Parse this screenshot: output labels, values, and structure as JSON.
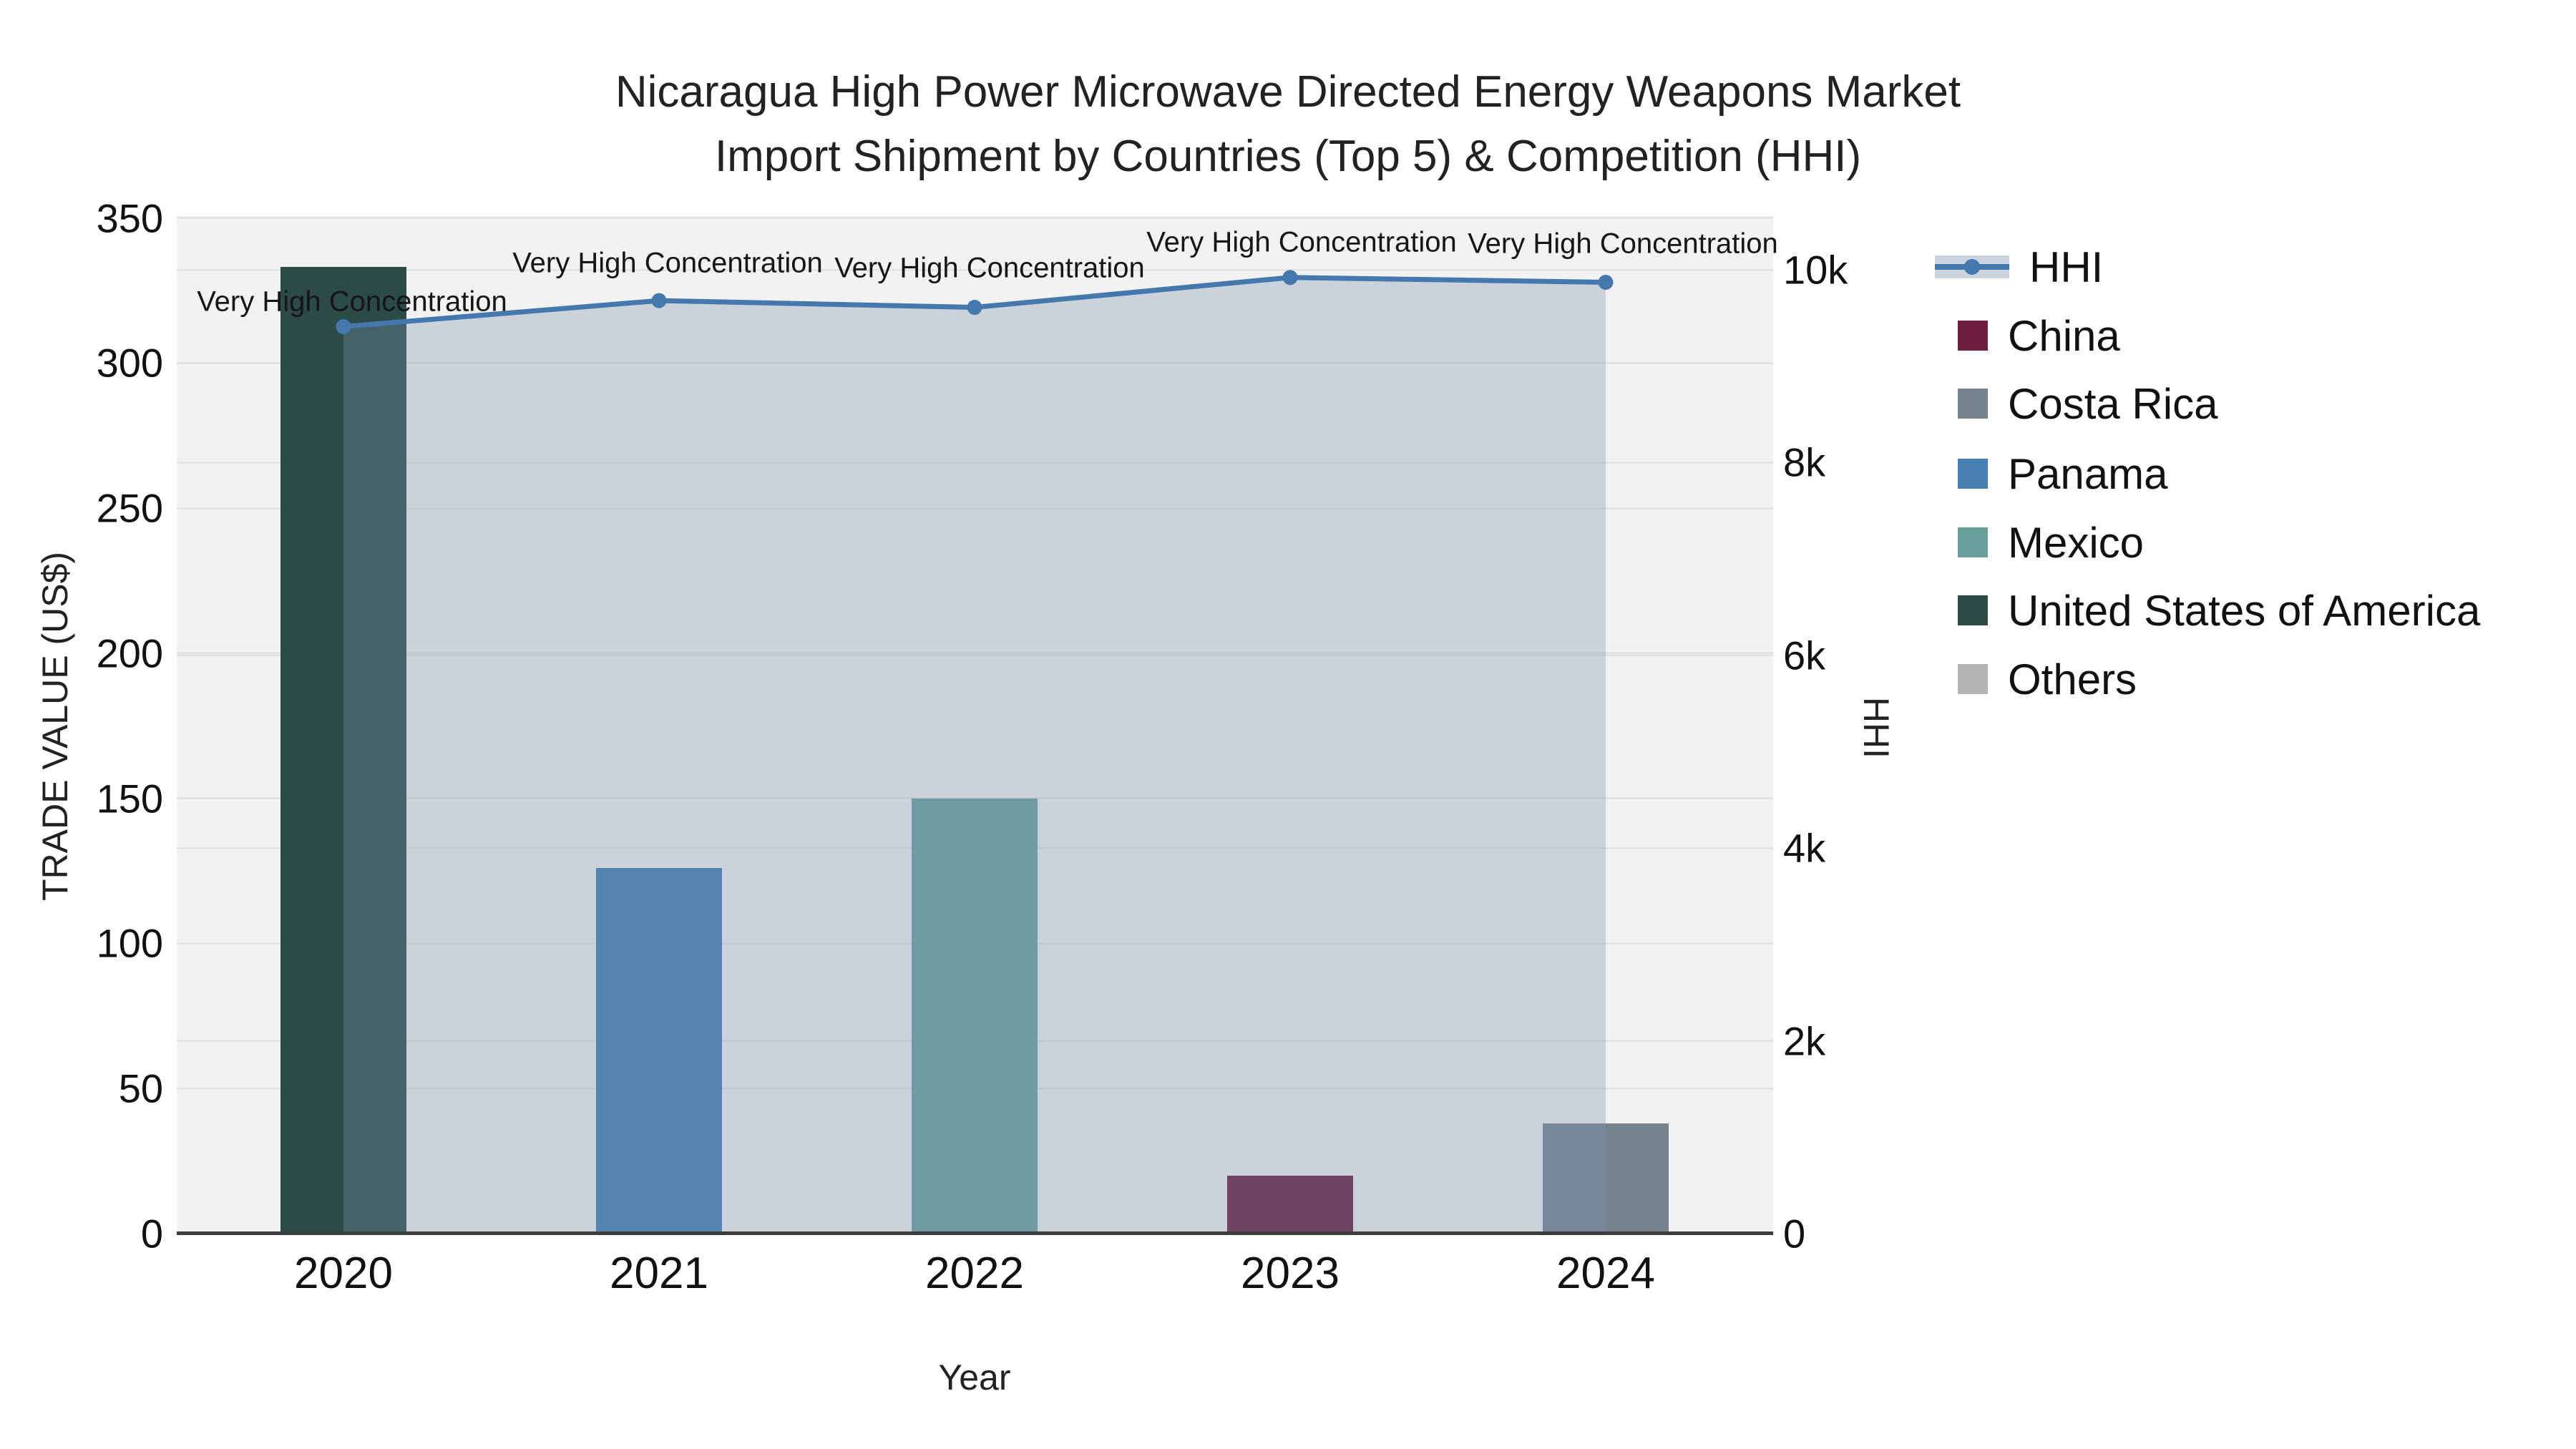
{
  "title": {
    "line1": "Nicaragua High Power Microwave Directed Energy Weapons Market",
    "line2": "Import Shipment by Countries (Top 5) & Competition (HHI)"
  },
  "axes": {
    "x": {
      "title": "Year"
    },
    "y_left": {
      "title": "TRADE VALUE (US$)"
    },
    "y_right": {
      "title": "HHI"
    }
  },
  "legend": [
    {
      "label": "HHI",
      "type": "line",
      "color": "#4579ad"
    },
    {
      "label": "China",
      "type": "bar",
      "color": "#6e1e3e"
    },
    {
      "label": "Costa Rica",
      "type": "bar",
      "color": "#75838f"
    },
    {
      "label": "Panama",
      "type": "bar",
      "color": "#457fb3"
    },
    {
      "label": "Mexico",
      "type": "bar",
      "color": "#68a19b"
    },
    {
      "label": "United States of America",
      "type": "bar",
      "color": "#2d4b46"
    },
    {
      "label": "Others",
      "type": "bar",
      "color": "#b4b6b5"
    }
  ],
  "chart_data": {
    "type": "bar+line",
    "title": "Nicaragua High Power Microwave Directed Energy Weapons Market Import Shipment by Countries (Top 5) & Competition (HHI)",
    "xlabel": "Year",
    "ylabel_left": "TRADE VALUE (US$)",
    "ylabel_right": "HHI",
    "categories": [
      "2020",
      "2021",
      "2022",
      "2023",
      "2024"
    ],
    "x_tick_labels": [
      "2020",
      "2021",
      "2022",
      "2023",
      "2024"
    ],
    "y_left_ticks": [
      {
        "label": "0",
        "value": 0
      },
      {
        "label": "50",
        "value": 50
      },
      {
        "label": "100",
        "value": 100
      },
      {
        "label": "150",
        "value": 150
      },
      {
        "label": "200",
        "value": 200
      },
      {
        "label": "250",
        "value": 250
      },
      {
        "label": "300",
        "value": 300
      },
      {
        "label": "350",
        "value": 350
      }
    ],
    "y_right_ticks": [
      {
        "label": "0",
        "value": 0
      },
      {
        "label": "2k",
        "value": 2000
      },
      {
        "label": "4k",
        "value": 4000
      },
      {
        "label": "6k",
        "value": 6000
      },
      {
        "label": "8k",
        "value": 8000
      },
      {
        "label": "10k",
        "value": 10000
      }
    ],
    "y_left_range": [
      0,
      350
    ],
    "y_right_range": [
      0,
      10000
    ],
    "grid": true,
    "legend_position": "right",
    "series": [
      {
        "name": "China",
        "type": "bar",
        "axis": "left",
        "color": "#6e1e3e",
        "values": [
          null,
          null,
          null,
          20,
          null
        ]
      },
      {
        "name": "Costa Rica",
        "type": "bar",
        "axis": "left",
        "color": "#75838f",
        "values": [
          null,
          null,
          null,
          null,
          38
        ]
      },
      {
        "name": "Panama",
        "type": "bar",
        "axis": "left",
        "color": "#457fb3",
        "values": [
          null,
          126,
          null,
          null,
          null
        ]
      },
      {
        "name": "Mexico",
        "type": "bar",
        "axis": "left",
        "color": "#68a19b",
        "values": [
          null,
          null,
          150,
          null,
          null
        ]
      },
      {
        "name": "United States of America",
        "type": "bar",
        "axis": "left",
        "color": "#2d4b46",
        "values": [
          333,
          null,
          null,
          null,
          null
        ]
      },
      {
        "name": "Others",
        "type": "bar",
        "axis": "left",
        "color": "#b4b6b5",
        "values": [
          null,
          null,
          null,
          null,
          null
        ]
      },
      {
        "name": "HHI",
        "type": "line",
        "axis": "right",
        "color": "#4579ad",
        "area_color": "#7c8faf",
        "area_opacity": 0.32,
        "values": [
          9410,
          9680,
          9610,
          9920,
          9870
        ]
      }
    ],
    "annotations": [
      {
        "x": "2020",
        "text": "Very High Concentration"
      },
      {
        "x": "2021",
        "text": "Very High Concentration"
      },
      {
        "x": "2022",
        "text": "Very High Concentration"
      },
      {
        "x": "2023",
        "text": "Very High Concentration"
      },
      {
        "x": "2024",
        "text": "Very High Concentration"
      }
    ]
  }
}
